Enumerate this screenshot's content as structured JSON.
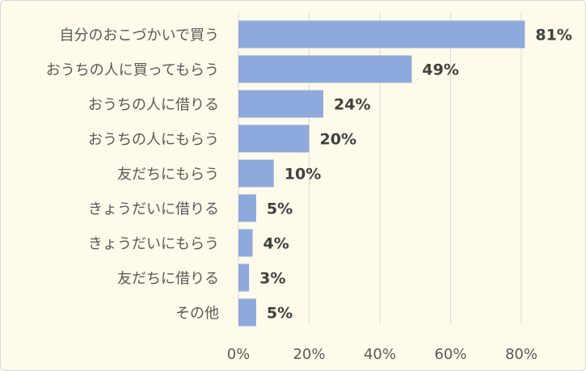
{
  "chart_data": {
    "type": "bar",
    "orientation": "horizontal",
    "title": "",
    "xlabel": "",
    "ylabel": "",
    "categories": [
      "自分のおこづかいで買う",
      "おうちの人に買ってもらう",
      "おうちの人に借りる",
      "おうちの人にもらう",
      "友だちにもらう",
      "きょうだいに借りる",
      "きょうだいにもらう",
      "友だちに借りる",
      "その他"
    ],
    "values": [
      81,
      49,
      24,
      20,
      10,
      5,
      4,
      3,
      5
    ],
    "data_labels": [
      "81%",
      "49%",
      "24%",
      "20%",
      "10%",
      "5%",
      "4%",
      "3%",
      "5%"
    ],
    "xlim": [
      0,
      90
    ],
    "xticks": [
      0,
      20,
      40,
      60,
      80
    ],
    "xtick_labels": [
      "0%",
      "20%",
      "40%",
      "60%",
      "80%"
    ],
    "grid": true,
    "legend": "none",
    "colors": {
      "bar": "#8ea9db",
      "background": "#fefbea",
      "grid": "#d9d9d9"
    }
  }
}
